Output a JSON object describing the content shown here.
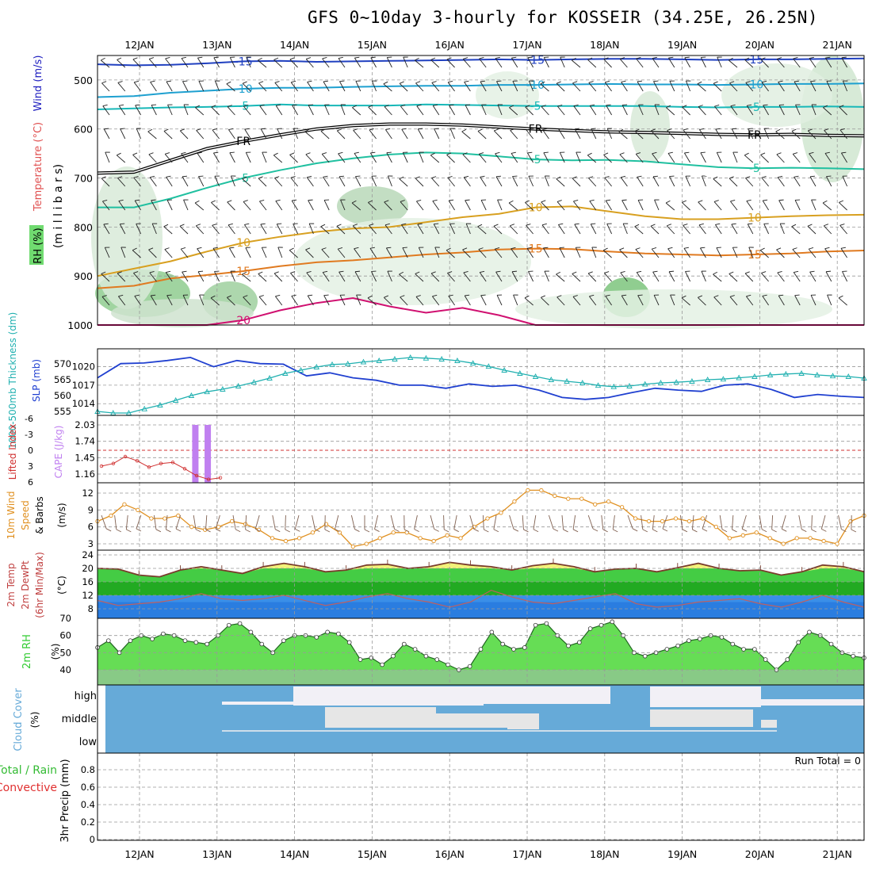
{
  "title": "GFS 0~10day 3-hourly for KOSSEIR (34.25E, 26.25N)",
  "date_labels": [
    "12JAN",
    "13JAN",
    "14JAN",
    "15JAN",
    "16JAN",
    "17JAN",
    "18JAN",
    "19JAN",
    "20JAN",
    "21JAN"
  ],
  "colors": {
    "temperature": "#e05050",
    "wind": "#2020c0",
    "rh": "#33cc33",
    "thickness": "#20b0b0",
    "slp": "#2040d0",
    "lifted": "#d03030",
    "cape": "#c080f0",
    "wind10": "#e09020",
    "barbs": "#806050",
    "cloud": "#66aad8",
    "precip_total": "#33bb33",
    "precip_conv": "#e03030"
  },
  "chart_data": [
    {
      "type": "contour",
      "panel": "upper-air",
      "ylabels": [
        "Temperature (°C)",
        "Wind (m/s)",
        "RH (%)",
        "(m i l l i b a r s)"
      ],
      "yticks": [
        500,
        600,
        700,
        800,
        900,
        1000
      ],
      "ylim": [
        450,
        1000
      ],
      "temperature_contours": [
        {
          "label": "-15",
          "color": "#2040c0",
          "y": [
            468,
            470,
            469,
            466,
            462,
            461,
            463,
            462,
            461,
            460,
            459,
            458,
            459,
            458,
            457,
            457,
            458,
            459,
            458,
            458,
            457,
            456
          ]
        },
        {
          "label": "-10",
          "color": "#1ea0d0",
          "y": [
            535,
            533,
            526,
            522,
            518,
            516,
            516,
            514,
            513,
            512,
            512,
            510,
            510,
            509,
            508,
            509,
            509,
            510,
            509,
            508,
            508,
            507
          ]
        },
        {
          "label": "-5",
          "color": "#18b8b8",
          "y": [
            560,
            558,
            556,
            555,
            553,
            550,
            552,
            552,
            552,
            550,
            551,
            552,
            553,
            553,
            553,
            553,
            555,
            556,
            555,
            555,
            554,
            555
          ]
        },
        {
          "label": "FR",
          "color": "#000000",
          "y": [
            690,
            688,
            664,
            640,
            625,
            612,
            600,
            593,
            590,
            590,
            592,
            596,
            600,
            603,
            606,
            607,
            609,
            611,
            612,
            611,
            613,
            614
          ]
        },
        {
          "label": "-5",
          "color": "#20c0a0",
          "y": [
            760,
            760,
            742,
            720,
            700,
            684,
            670,
            660,
            652,
            648,
            650,
            656,
            662,
            664,
            663,
            666,
            672,
            678,
            680,
            679,
            680,
            682
          ]
        },
        {
          "label": "10",
          "color": "#d8a020",
          "y": [
            900,
            885,
            870,
            850,
            832,
            820,
            810,
            803,
            800,
            790,
            780,
            773,
            760,
            758,
            768,
            778,
            784,
            784,
            781,
            778,
            776,
            775
          ]
        },
        {
          "label": "15",
          "color": "#e07a20",
          "y": [
            925,
            920,
            905,
            898,
            890,
            880,
            872,
            868,
            862,
            856,
            852,
            846,
            844,
            845,
            850,
            854,
            856,
            858,
            856,
            854,
            850,
            848
          ]
        },
        {
          "label": "20",
          "color": "#d01070",
          "y": [
            1000,
            1000,
            1000,
            1000,
            990,
            970,
            955,
            945,
            962,
            975,
            965,
            980,
            1000,
            1000,
            1000,
            1000,
            1000,
            1000,
            1000,
            1000,
            1000,
            1000
          ]
        }
      ]
    },
    {
      "type": "line",
      "panel": "thickness-slp",
      "ylabels": [
        "1000-500mb Thickness (dm)",
        "SLP (mb)"
      ],
      "left_ticks": [
        555,
        560,
        565,
        570
      ],
      "right_ticks": [
        1014,
        1017,
        1020
      ],
      "series": [
        {
          "name": "SLP (mb)",
          "axis": "right",
          "values": [
            1018.2,
            1020.5,
            1020.6,
            1021.0,
            1021.5,
            1020.0,
            1021.0,
            1020.5,
            1020.4,
            1018.5,
            1019.0,
            1018.2,
            1017.8,
            1017.0,
            1017.0,
            1016.5,
            1017.2,
            1016.8,
            1017.0,
            1016.2,
            1015.0,
            1014.7,
            1015.0,
            1015.8,
            1016.5,
            1016.2,
            1016.0,
            1017.0,
            1017.2,
            1016.3,
            1015.0,
            1015.5,
            1015.2,
            1015.0
          ]
        },
        {
          "name": "1000-500mb Thickness (dm)",
          "axis": "left",
          "values": [
            555.0,
            554.5,
            554.5,
            555.8,
            557.0,
            558.5,
            560.0,
            561.2,
            562.0,
            563.0,
            564.2,
            565.5,
            567.0,
            568.0,
            569.0,
            569.8,
            570.0,
            570.6,
            571.0,
            571.5,
            572.0,
            571.8,
            571.5,
            571.0,
            570.2,
            569.2,
            568.0,
            567.0,
            566.0,
            565.0,
            564.5,
            564.0,
            563.2,
            562.8,
            563.0,
            563.6,
            564.0,
            564.2,
            564.5,
            565.0,
            565.2,
            565.6,
            566.0,
            566.5,
            566.8,
            567.0,
            566.5,
            566.2,
            566.0,
            565.5
          ]
        }
      ]
    },
    {
      "type": "bar",
      "panel": "cape-lifted",
      "ylabels": [
        "Lifted Index",
        "CAPE (J/kg)"
      ],
      "left_ticks": [
        6,
        3,
        0,
        -3,
        -6
      ],
      "right_ticks": [
        1.16,
        1.45,
        1.74,
        2.03
      ],
      "series": [
        {
          "name": "CAPE (J/kg)",
          "x_days": [
            0.72,
            0.88
          ],
          "values": [
            2.03,
            2.03
          ]
        },
        {
          "name": "Lifted Index",
          "values": [
            3.0,
            2.5,
            1.2,
            2.0,
            3.2,
            2.5,
            2.3,
            3.5,
            4.8,
            5.5,
            5.2
          ]
        }
      ]
    },
    {
      "type": "line",
      "panel": "wind10",
      "ylabels": [
        "10m Wind Speed & Barbs",
        "(m/s)"
      ],
      "yticks": [
        3,
        6,
        9,
        12
      ],
      "series": [
        {
          "name": "10m Wind Speed",
          "values": [
            7,
            8,
            10,
            9,
            7.5,
            7.5,
            8,
            6,
            5.5,
            6,
            7,
            6.5,
            5.5,
            4,
            3.5,
            4,
            5,
            6.5,
            5,
            2.5,
            3,
            4,
            5,
            5,
            4,
            3.5,
            4.5,
            4,
            6,
            7.5,
            8.5,
            10.5,
            12.5,
            12.5,
            11.5,
            11,
            11,
            10,
            10.5,
            9.5,
            7.5,
            7,
            7,
            7.5,
            7,
            7.5,
            6,
            4,
            4.5,
            5,
            4,
            3,
            4,
            4,
            3.5,
            3,
            7,
            8
          ]
        }
      ]
    },
    {
      "type": "area",
      "panel": "temp2m",
      "ylabels": [
        "2m Temp",
        "2m DewPt",
        "(6hr Min/Max)",
        "(°C)"
      ],
      "yticks": [
        8,
        12,
        16,
        20,
        24
      ],
      "series": [
        {
          "name": "2m Temp",
          "values": [
            20.0,
            19.8,
            18.0,
            17.5,
            19.5,
            20.5,
            19.5,
            18.5,
            20.5,
            21.5,
            20.5,
            19.0,
            19.5,
            21.0,
            21.2,
            20.0,
            20.5,
            21.8,
            21.0,
            20.5,
            19.5,
            20.8,
            21.5,
            20.5,
            19.0,
            19.8,
            20.0,
            19.0,
            20.2,
            21.5,
            20.0,
            19.3,
            19.5,
            18.0,
            19.0,
            21.0,
            20.5,
            19.0
          ]
        },
        {
          "name": "2m DewPt",
          "values": [
            10.5,
            9.0,
            9.5,
            10.0,
            11.0,
            12.5,
            11.0,
            10.5,
            11.0,
            12.0,
            10.5,
            9.0,
            10.0,
            11.5,
            12.5,
            11.0,
            10.0,
            8.5,
            10.0,
            13.5,
            11.5,
            10.0,
            9.5,
            10.5,
            11.5,
            12.5,
            9.5,
            8.5,
            9.0,
            10.0,
            10.5,
            11.0,
            9.5,
            8.5,
            10.0,
            12.0,
            10.0,
            8.5
          ]
        }
      ]
    },
    {
      "type": "area",
      "panel": "rh2m",
      "ylabels": [
        "2m RH",
        "(%)"
      ],
      "yticks": [
        40,
        50,
        60,
        70
      ],
      "series": [
        {
          "name": "2m RH",
          "values": [
            53,
            57,
            50,
            57,
            60,
            58,
            61,
            60,
            57,
            56,
            55,
            60,
            66,
            67,
            62,
            55,
            50,
            57,
            60,
            60,
            59,
            62,
            61,
            56,
            46,
            47,
            43,
            48,
            55,
            52,
            48,
            46,
            43,
            40,
            42,
            52,
            62,
            55,
            52,
            53,
            66,
            67,
            60,
            54,
            56,
            64,
            66,
            68,
            60,
            50,
            48,
            50,
            52,
            54,
            57,
            58,
            60,
            59,
            55,
            52,
            52,
            46,
            40,
            46,
            56,
            62,
            60,
            55,
            50,
            48,
            47
          ]
        }
      ]
    },
    {
      "type": "heatmap",
      "panel": "cloud",
      "ylabels": [
        "Cloud Cover",
        "(%)"
      ],
      "yticks": [
        "high",
        "middle",
        "low"
      ]
    },
    {
      "type": "bar",
      "panel": "precip",
      "ylabels": [
        "Total / Rain",
        "Convective",
        "3hr Precip (mm)"
      ],
      "yticks": [
        0,
        0.2,
        0.4,
        0.6,
        0.8
      ],
      "ylim": [
        0,
        1.0
      ],
      "annotation": "Run Total = 0",
      "values": []
    }
  ]
}
